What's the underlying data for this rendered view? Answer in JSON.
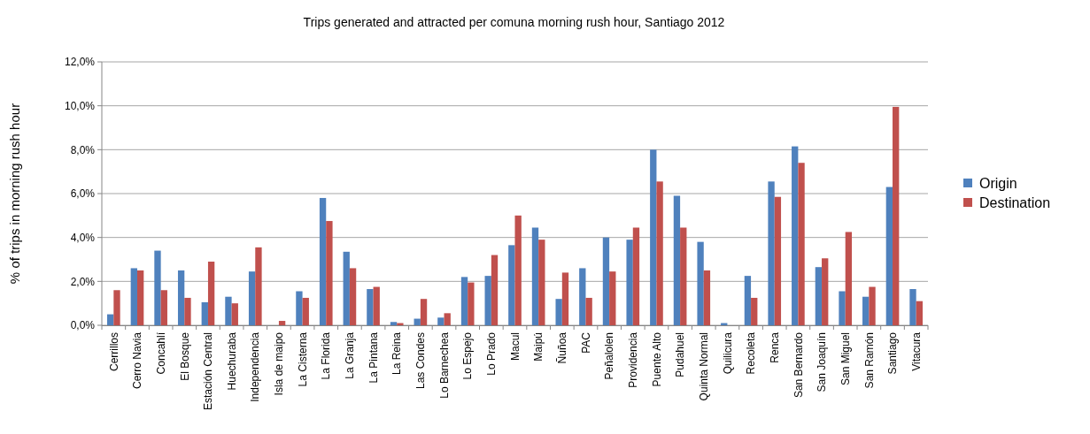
{
  "chart_data": {
    "type": "bar",
    "title": "Trips generated and attracted per comuna morning rush hour, Santiago 2012",
    "ylabel": "% of trips in morning rush hour",
    "categories": [
      "Cerrillos",
      "Cerro Navia",
      "Concahlí",
      "El Bosque",
      "Estación Central",
      "Huechuraba",
      "Independencia",
      "Isla de maipo",
      "La Cisterna",
      "La Florida",
      "La Granja",
      "La Pintana",
      "La Reina",
      "Las Condes",
      "Lo Barnechea",
      "Lo Espejo",
      "Lo Prado",
      "Macul",
      "Maipú",
      "Ñuñoa",
      "PAC",
      "Peñalolen",
      "Providencia",
      "Puente Alto",
      "Pudahuel",
      "Quinta Normal",
      "Quilicura",
      "Recoleta",
      "Renca",
      "San Bernardo",
      "San Joaquín",
      "San Miguel",
      "San Ramón",
      "Santiago",
      "Vitacura"
    ],
    "series": [
      {
        "name": "Origin",
        "color": "#4f81bd",
        "values": [
          0.5,
          2.6,
          3.4,
          2.5,
          1.05,
          1.3,
          2.45,
          null,
          1.55,
          5.8,
          3.35,
          1.65,
          0.15,
          0.3,
          0.35,
          2.2,
          2.25,
          3.65,
          4.45,
          1.2,
          2.6,
          4.0,
          3.9,
          8.0,
          5.9,
          3.8,
          0.1,
          2.25,
          6.55,
          8.15,
          2.65,
          1.55,
          1.3,
          6.3,
          1.65
        ]
      },
      {
        "name": "Destination",
        "color": "#c0504d",
        "values": [
          1.6,
          2.5,
          1.6,
          1.25,
          2.9,
          1.0,
          3.55,
          0.2,
          1.25,
          4.75,
          2.6,
          1.75,
          0.1,
          1.2,
          0.55,
          1.95,
          3.2,
          5.0,
          3.9,
          2.4,
          1.25,
          2.45,
          4.45,
          6.55,
          4.45,
          2.5,
          null,
          1.25,
          5.85,
          7.4,
          3.05,
          4.25,
          1.75,
          9.95,
          1.1
        ]
      }
    ],
    "ylim": [
      0,
      12
    ],
    "yticks": [
      {
        "value": 0,
        "label": "0,0%"
      },
      {
        "value": 2,
        "label": "2,0%"
      },
      {
        "value": 4,
        "label": "4,0%"
      },
      {
        "value": 6,
        "label": "6,0%"
      },
      {
        "value": 8,
        "label": "8,0%"
      },
      {
        "value": 10,
        "label": "10,0%"
      },
      {
        "value": 12,
        "label": "12,0%"
      }
    ],
    "grid": "y",
    "legend": "right"
  }
}
